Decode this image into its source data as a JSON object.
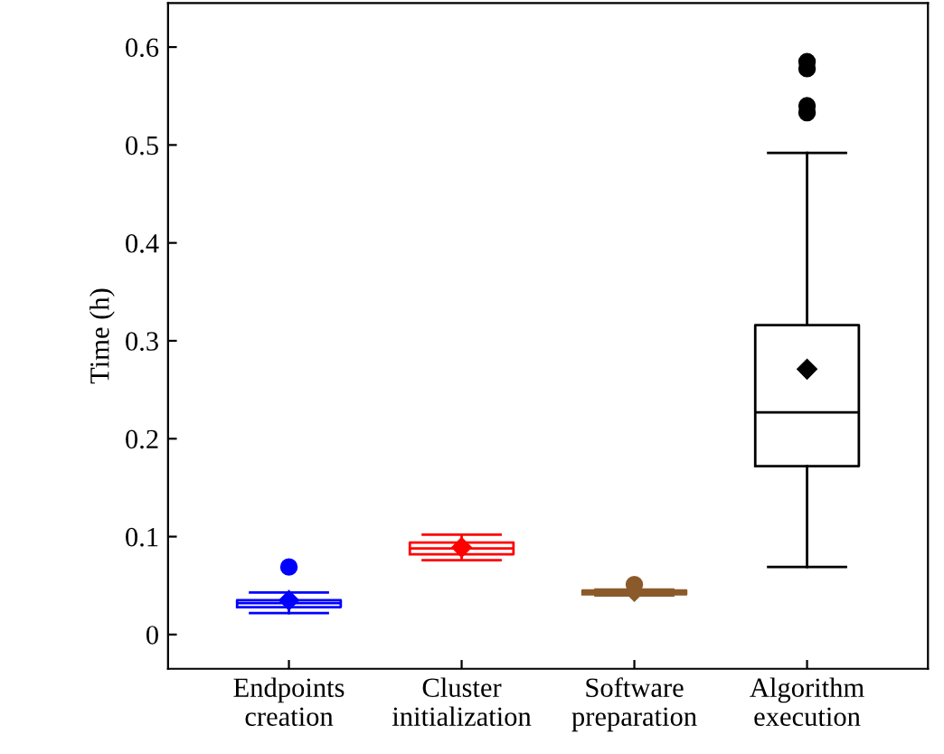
{
  "chart_data": {
    "type": "box",
    "ylabel": "Time (h)",
    "categories": [
      "Endpoints\ncreation",
      "Cluster\ninitialization",
      "Software\npreparation",
      "Algorithm\nexecution"
    ],
    "boxes": [
      {
        "low": 0.022,
        "q1": 0.028,
        "median": 0.032,
        "q3": 0.035,
        "high": 0.043,
        "mean": 0.035,
        "outliers": [
          0.069
        ]
      },
      {
        "low": 0.076,
        "q1": 0.082,
        "median": 0.088,
        "q3": 0.094,
        "high": 0.102,
        "mean": 0.089
      },
      {
        "low": 0.04,
        "q1": 0.041,
        "median": 0.043,
        "q3": 0.045,
        "high": 0.046,
        "mean": 0.044,
        "outliers": [
          0.051
        ]
      },
      {
        "low": 0.069,
        "q1": 0.172,
        "median": 0.227,
        "q3": 0.316,
        "high": 0.492,
        "mean": 0.271,
        "outliers": [
          0.533,
          0.54,
          0.578,
          0.585
        ]
      }
    ],
    "colors": [
      "#0000ff",
      "#ff0000",
      "#8b5a2b",
      "#000000"
    ],
    "marker": "diamond",
    "ylim": [
      -0.035,
      0.645
    ],
    "yticks": [
      0,
      0.1,
      0.2,
      0.3,
      0.4,
      0.5,
      0.6
    ],
    "grid": false,
    "legend": false
  }
}
